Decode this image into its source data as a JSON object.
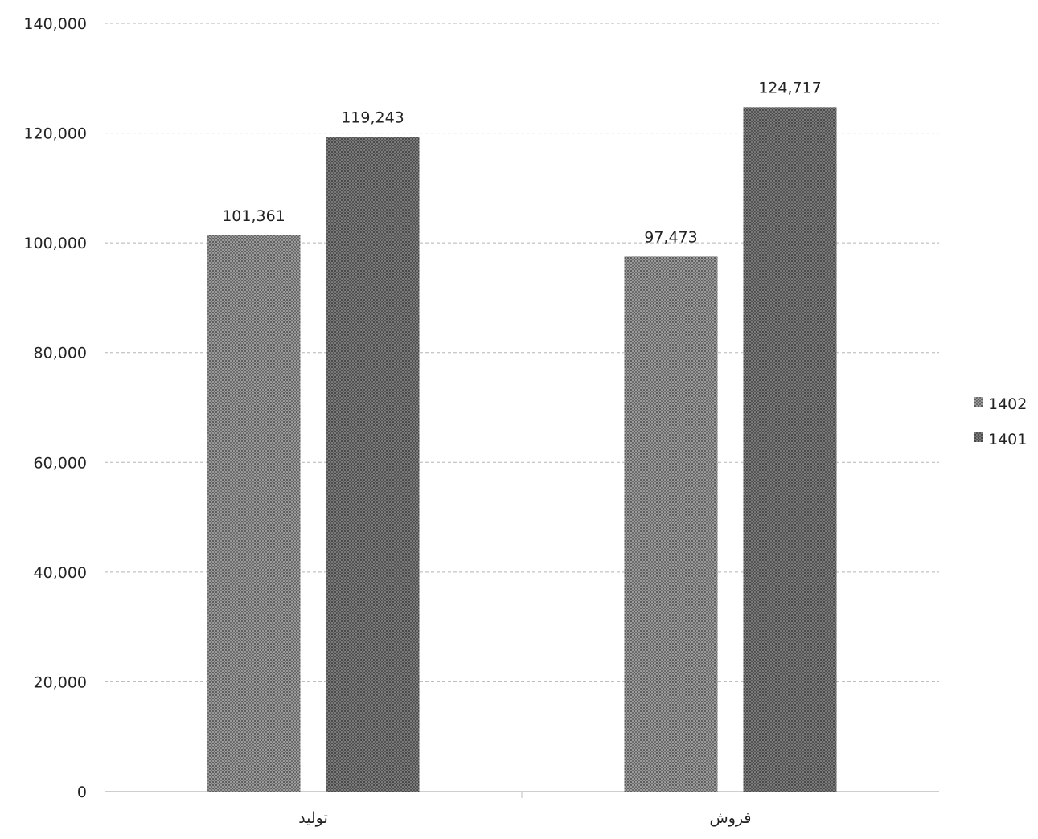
{
  "chart_data": {
    "type": "bar",
    "categories": [
      "تولید",
      "فروش"
    ],
    "series": [
      {
        "name": "1402",
        "values": [
          101361,
          97473
        ],
        "labels": [
          "101,361",
          "97,473"
        ],
        "color": "#8a8a8a"
      },
      {
        "name": "1401",
        "values": [
          119243,
          124717
        ],
        "labels": [
          "119,243",
          "124,717"
        ],
        "color": "#6a6a6a"
      }
    ],
    "ylim": [
      0,
      140000
    ],
    "yticks": [
      0,
      20000,
      40000,
      60000,
      80000,
      100000,
      120000,
      140000
    ],
    "ytick_labels": [
      "0",
      "20,000",
      "40,000",
      "60,000",
      "80,000",
      "100,000",
      "120,000",
      "140,000"
    ],
    "grid": true,
    "legend": "right"
  }
}
